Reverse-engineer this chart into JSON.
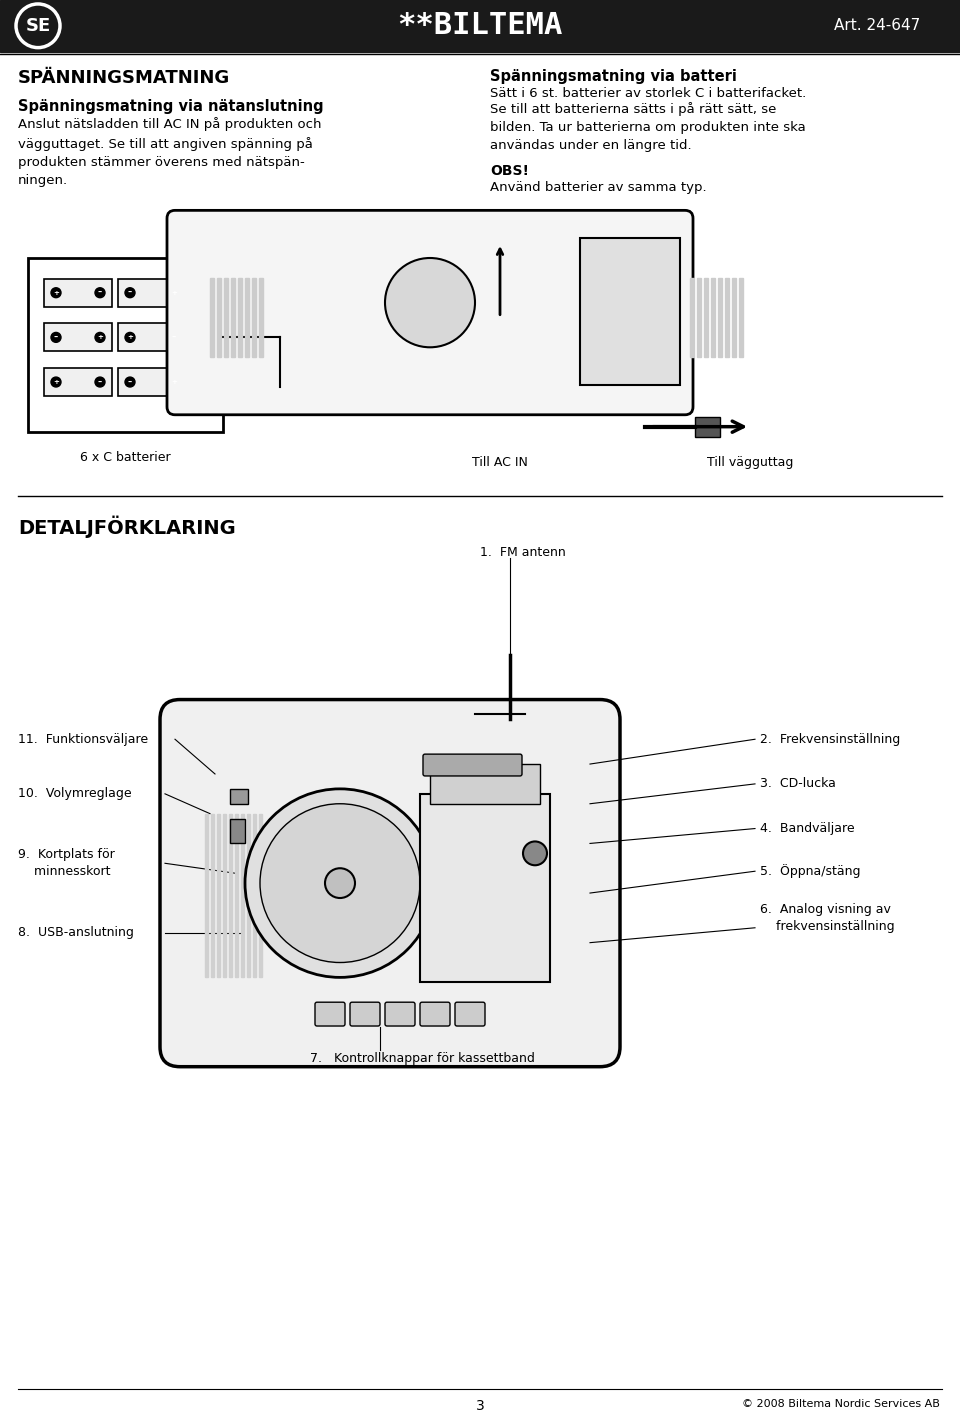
{
  "bg_color": "#ffffff",
  "header_bg": "#1a1a1a",
  "header_text_color": "#ffffff",
  "header_logo": "**BILTEMA",
  "header_art": "Art. 24-647",
  "header_se": "SE",
  "title_left": "SPÄNNINGSMATNING",
  "subtitle_left": "Spänningsmatning via nätanslutning",
  "body_left": "Anslut nätsladden till AC IN på produkten och\nvägguttaget. Se till att angiven spänning på\nprodukten stämmer överens med nätspän-\nningen.",
  "title_right": "Spänningsmatning via batteri",
  "body_right1": "Sätt i 6 st. batterier av storlek C i batterifacket.",
  "body_right2": "Se till att batterierna sätts i på rätt sätt, se\nbilden. Ta ur batterierna om produkten inte ska\nanvändas under en längre tid.",
  "obs_title": "OBS!",
  "obs_body": "Använd batterier av samma typ.",
  "label_batteries": "6 x C batterier",
  "label_ac_in": "Till AC IN",
  "label_wall": "Till vägguttag",
  "section2_title": "DETALJFÖRKLARING",
  "items": [
    {
      "num": "1.",
      "label": "FM antenn"
    },
    {
      "num": "2.",
      "label": "Frekvensinställning"
    },
    {
      "num": "3.",
      "label": "CD-lucka"
    },
    {
      "num": "4.",
      "label": "Bandväljare"
    },
    {
      "num": "5.",
      "label": "Öppna/stäng"
    },
    {
      "num": "6.",
      "label": "Analog visning av\nfrekvensinställning"
    },
    {
      "num": "7.",
      "label": "Kontrollknappar för kassettband"
    },
    {
      "num": "8.",
      "label": "USB-anslutning"
    },
    {
      "num": "9.",
      "label": "Kortplats för\nminnesskort"
    },
    {
      "num": "10.",
      "label": "Volymreglage"
    },
    {
      "num": "11.",
      "label": "Funktionsväljare"
    }
  ],
  "footer_page": "3",
  "footer_copy": "© 2008 Biltema Nordic Services AB"
}
